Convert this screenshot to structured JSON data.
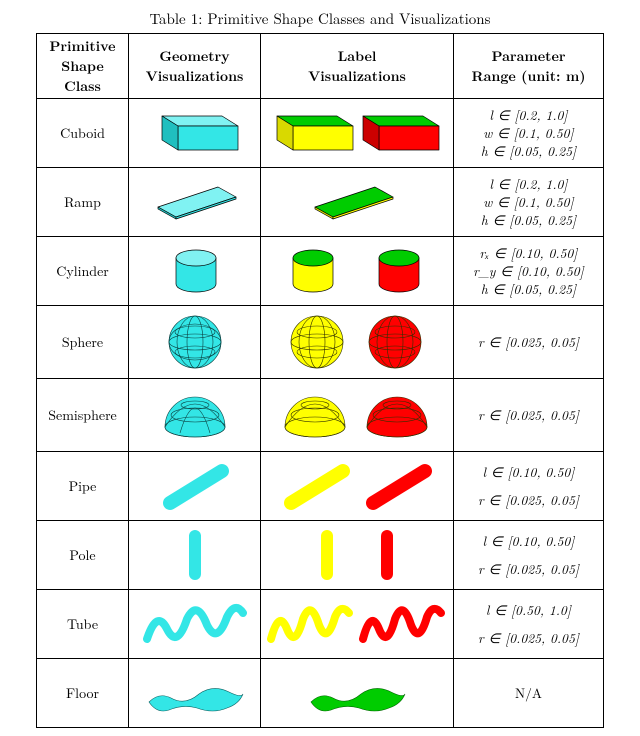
{
  "caption": "Table 1: Primitive Shape Classes and Visualizations",
  "headers": {
    "c1a": "Primitive",
    "c1b": "Shape Class",
    "c2a": "Geometry",
    "c2b": "Visualizations",
    "c3a": "Label",
    "c3b": "Visualizations",
    "c4a": "Parameter",
    "c4b": "Range (unit: m)"
  },
  "rows": {
    "cuboid": {
      "name": "Cuboid",
      "params": [
        "l ∈ [0.2, 1.0]",
        "w ∈ [0.1, 0.50]",
        "h ∈ [0.05, 0.25]"
      ]
    },
    "ramp": {
      "name": "Ramp",
      "params": [
        "l ∈ [0.2, 1.0]",
        "w ∈ [0.1, 0.50]",
        "h ∈ [0.05, 0.25]"
      ]
    },
    "cylinder": {
      "name": "Cylinder",
      "params": [
        "rₓ ∈ [0.10, 0.50]",
        "r_y ∈ [0.10, 0.50]",
        "h ∈ [0.05, 0.25]"
      ]
    },
    "sphere": {
      "name": "Sphere",
      "params": [
        "r ∈ [0.025, 0.05]"
      ]
    },
    "semisphere": {
      "name": "Semisphere",
      "params": [
        "r ∈ [0.025, 0.05]"
      ]
    },
    "pipe": {
      "name": "Pipe",
      "params_gap": [
        "l ∈ [0.10, 0.50]",
        "r ∈ [0.025, 0.05]"
      ]
    },
    "pole": {
      "name": "Pole",
      "params_gap": [
        "l ∈ [0.10, 0.50]",
        "r ∈ [0.025, 0.05]"
      ]
    },
    "tube": {
      "name": "Tube",
      "params_gap": [
        "l ∈ [0.50, 1.0]",
        "r ∈ [0.025, 0.05]"
      ]
    },
    "floor": {
      "name": "Floor",
      "na": "N/A"
    }
  },
  "colors": {
    "geom_fill": "#33e6e6",
    "geom_dark": "#20bfbf",
    "geom_light": "#80f2f2",
    "yellow": "#ffff00",
    "yellow_d": "#d9d900",
    "green": "#00cc00",
    "green_d": "#009900",
    "red": "#ff0000",
    "red_d": "#cc0000",
    "stroke": "#000000",
    "wire": "#0a4040"
  },
  "stroke_width": 0.7
}
